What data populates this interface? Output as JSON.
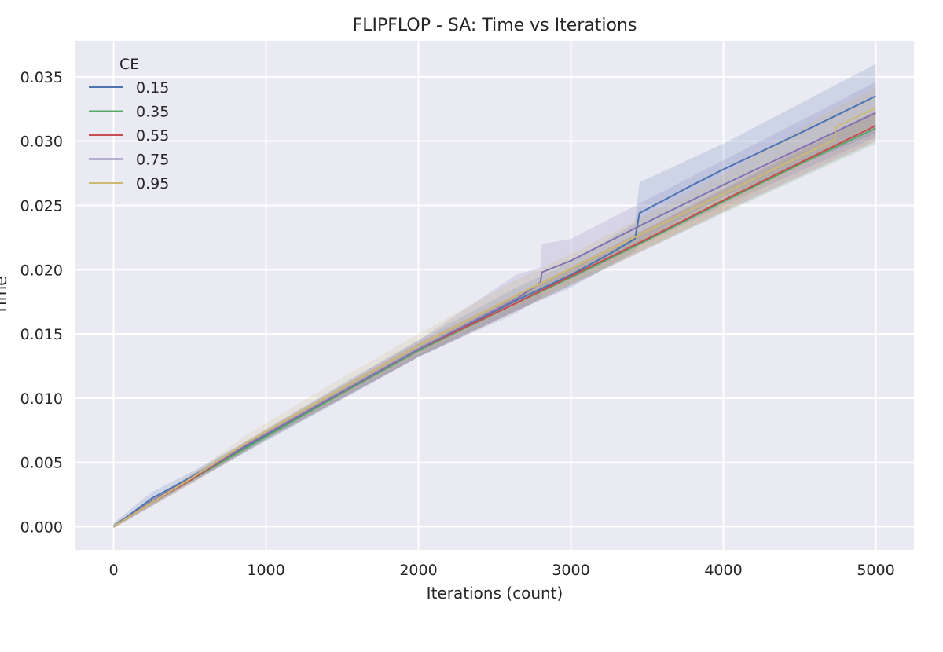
{
  "chart_data": {
    "type": "line",
    "title": "FLIPFLOP - SA: Time vs Iterations",
    "xlabel": "Iterations (count)",
    "ylabel": "Time",
    "xlim": [
      -250,
      5250
    ],
    "ylim": [
      -0.0018,
      0.0378
    ],
    "x_ticks": [
      0,
      1000,
      2000,
      3000,
      4000,
      5000
    ],
    "y_ticks": [
      0.0,
      0.005,
      0.01,
      0.015,
      0.02,
      0.025,
      0.03,
      0.035
    ],
    "x_tick_labels": [
      "0",
      "1000",
      "2000",
      "3000",
      "4000",
      "5000"
    ],
    "y_tick_labels": [
      "0.000",
      "0.005",
      "0.010",
      "0.015",
      "0.020",
      "0.025",
      "0.030",
      "0.035"
    ],
    "grid": true,
    "background": "#eaeaf2",
    "legend": {
      "title": "CE",
      "placement": "upper-left"
    },
    "series": [
      {
        "name": "0.15",
        "color": "#4c72b0",
        "points": [
          [
            0,
            0.0
          ],
          [
            250,
            0.0022
          ],
          [
            500,
            0.0038
          ],
          [
            880,
            0.0063
          ],
          [
            1500,
            0.0105
          ],
          [
            2000,
            0.0138
          ],
          [
            2640,
            0.0176
          ],
          [
            3000,
            0.0196
          ],
          [
            3250,
            0.0212
          ],
          [
            3420,
            0.0224
          ],
          [
            3450,
            0.0244
          ],
          [
            3800,
            0.0266
          ],
          [
            4000,
            0.0278
          ],
          [
            4500,
            0.0306
          ],
          [
            5000,
            0.0335
          ]
        ],
        "band": [
          [
            0,
            -0.0001,
            0.0003
          ],
          [
            250,
            0.0018,
            0.0027
          ],
          [
            500,
            0.0034,
            0.0042
          ],
          [
            880,
            0.0059,
            0.0067
          ],
          [
            1500,
            0.0099,
            0.0111
          ],
          [
            2000,
            0.0132,
            0.0145
          ],
          [
            2640,
            0.0168,
            0.0186
          ],
          [
            3000,
            0.0186,
            0.0206
          ],
          [
            3420,
            0.0214,
            0.0236
          ],
          [
            3450,
            0.0222,
            0.0268
          ],
          [
            4000,
            0.0257,
            0.0298
          ],
          [
            5000,
            0.0306,
            0.036
          ]
        ]
      },
      {
        "name": "0.35",
        "color": "#55a868",
        "points": [
          [
            0,
            0.0
          ],
          [
            250,
            0.0019
          ],
          [
            500,
            0.0036
          ],
          [
            880,
            0.0062
          ],
          [
            1500,
            0.0104
          ],
          [
            2000,
            0.0137
          ],
          [
            2640,
            0.0174
          ],
          [
            3000,
            0.0194
          ],
          [
            3500,
            0.0223
          ],
          [
            4000,
            0.0253
          ],
          [
            4500,
            0.0282
          ],
          [
            5000,
            0.031
          ]
        ],
        "band": [
          [
            0,
            -0.0001,
            0.0002
          ],
          [
            500,
            0.0033,
            0.0039
          ],
          [
            1000,
            0.0067,
            0.0074
          ],
          [
            2000,
            0.0132,
            0.0142
          ],
          [
            3000,
            0.0188,
            0.0201
          ],
          [
            4000,
            0.0244,
            0.0262
          ],
          [
            5000,
            0.0298,
            0.0322
          ]
        ]
      },
      {
        "name": "0.55",
        "color": "#c44e52",
        "points": [
          [
            0,
            0.0
          ],
          [
            250,
            0.0019
          ],
          [
            500,
            0.0036
          ],
          [
            880,
            0.0064
          ],
          [
            1500,
            0.0105
          ],
          [
            2000,
            0.0138
          ],
          [
            2640,
            0.0174
          ],
          [
            3000,
            0.0195
          ],
          [
            3500,
            0.0224
          ],
          [
            4000,
            0.0254
          ],
          [
            4500,
            0.0283
          ],
          [
            5000,
            0.0312
          ]
        ],
        "band": [
          [
            0,
            -0.0001,
            0.0002
          ],
          [
            500,
            0.0033,
            0.0039
          ],
          [
            1000,
            0.0068,
            0.0075
          ],
          [
            2000,
            0.0132,
            0.0143
          ],
          [
            3000,
            0.0188,
            0.0202
          ],
          [
            4000,
            0.0245,
            0.0263
          ],
          [
            5000,
            0.03,
            0.0324
          ]
        ]
      },
      {
        "name": "0.75",
        "color": "#8172b2",
        "points": [
          [
            0,
            0.0
          ],
          [
            250,
            0.002
          ],
          [
            500,
            0.0037
          ],
          [
            880,
            0.0064
          ],
          [
            1500,
            0.0105
          ],
          [
            2000,
            0.0138
          ],
          [
            2640,
            0.0177
          ],
          [
            2800,
            0.019
          ],
          [
            2810,
            0.0198
          ],
          [
            3000,
            0.0207
          ],
          [
            3500,
            0.0237
          ],
          [
            4000,
            0.0266
          ],
          [
            4500,
            0.0294
          ],
          [
            5000,
            0.0322
          ]
        ],
        "band": [
          [
            0,
            -0.0001,
            0.0002
          ],
          [
            500,
            0.0034,
            0.004
          ],
          [
            1000,
            0.0068,
            0.0076
          ],
          [
            2000,
            0.0132,
            0.0145
          ],
          [
            2640,
            0.0166,
            0.0196
          ],
          [
            2800,
            0.0178,
            0.0202
          ],
          [
            2810,
            0.0184,
            0.022
          ],
          [
            3000,
            0.0193,
            0.0224
          ],
          [
            4000,
            0.025,
            0.0285
          ],
          [
            5000,
            0.0303,
            0.0346
          ]
        ]
      },
      {
        "name": "0.95",
        "color": "#ccb974",
        "points": [
          [
            0,
            0.0
          ],
          [
            250,
            0.0019
          ],
          [
            500,
            0.0037
          ],
          [
            880,
            0.0066
          ],
          [
            1500,
            0.0108
          ],
          [
            2000,
            0.0141
          ],
          [
            2640,
            0.018
          ],
          [
            3000,
            0.0201
          ],
          [
            3500,
            0.023
          ],
          [
            4000,
            0.0259
          ],
          [
            4500,
            0.0288
          ],
          [
            4730,
            0.0301
          ],
          [
            4740,
            0.0311
          ],
          [
            5000,
            0.0326
          ]
        ],
        "band": [
          [
            0,
            -0.0001,
            0.0002
          ],
          [
            500,
            0.0034,
            0.004
          ],
          [
            880,
            0.0061,
            0.0072
          ],
          [
            1500,
            0.0102,
            0.0116
          ],
          [
            2000,
            0.0134,
            0.015
          ],
          [
            2640,
            0.0171,
            0.0192
          ],
          [
            3000,
            0.019,
            0.0212
          ],
          [
            4000,
            0.0246,
            0.0274
          ],
          [
            4740,
            0.0296,
            0.0326
          ],
          [
            5000,
            0.031,
            0.0342
          ]
        ]
      }
    ]
  }
}
